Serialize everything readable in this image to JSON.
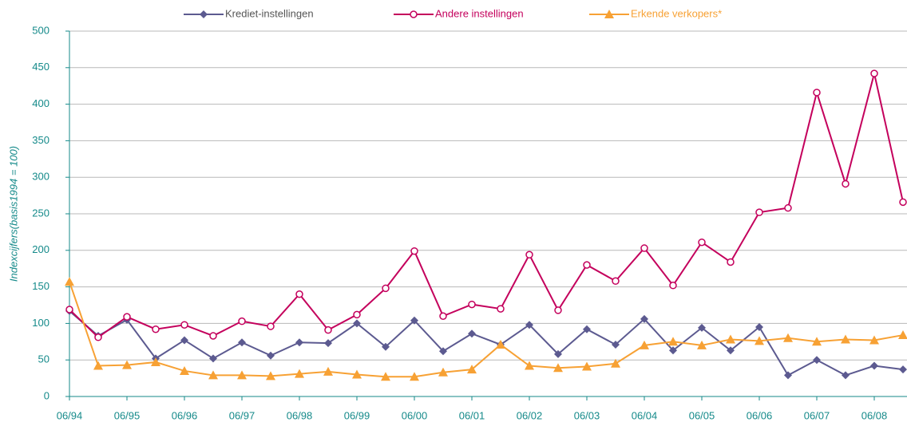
{
  "chart_data": {
    "type": "line",
    "y_label": "Indexcijfers(basis1994 = 100)",
    "categories": [
      "06/94",
      null,
      "06/95",
      null,
      "06/96",
      null,
      "06/97",
      null,
      "06/98",
      null,
      "06/99",
      null,
      "06/00",
      null,
      "06/01",
      null,
      "06/02",
      null,
      "06/03",
      null,
      "06/04",
      null,
      "06/05",
      null,
      "06/06",
      null,
      "06/07",
      null,
      "06/08",
      null
    ],
    "series": [
      {
        "name": "Krediet-instellingen",
        "color": "#5c5a90",
        "marker": "diamond",
        "values": [
          117,
          83,
          105,
          52,
          77,
          52,
          74,
          56,
          74,
          73,
          100,
          68,
          104,
          62,
          86,
          71,
          98,
          58,
          92,
          71,
          106,
          63,
          94,
          63,
          95,
          29,
          50,
          29,
          42,
          37
        ]
      },
      {
        "name": "Andere instellingen",
        "color": "#c4005c",
        "marker": "circle",
        "values": [
          119,
          81,
          109,
          92,
          98,
          83,
          103,
          96,
          140,
          91,
          112,
          148,
          199,
          110,
          126,
          120,
          194,
          118,
          180,
          158,
          203,
          152,
          211,
          184,
          252,
          258,
          416,
          291,
          442,
          266
        ]
      },
      {
        "name": "Erkende verkopers*",
        "color": "#f7a134",
        "marker": "triangle",
        "values": [
          157,
          42,
          43,
          47,
          35,
          29,
          29,
          28,
          31,
          34,
          30,
          27,
          27,
          33,
          37,
          71,
          42,
          39,
          41,
          45,
          70,
          75,
          70,
          78,
          76,
          80,
          75,
          78,
          77,
          84
        ]
      }
    ],
    "ylim": [
      0,
      500
    ],
    "yticks": [
      0,
      50,
      100,
      150,
      200,
      250,
      300,
      350,
      400,
      450,
      500
    ],
    "grid": true,
    "legend": "top"
  }
}
